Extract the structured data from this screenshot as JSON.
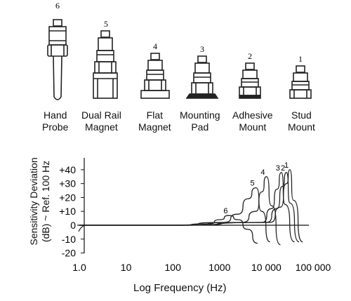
{
  "mounts": [
    {
      "number": "6",
      "line1": "Hand",
      "line2": "Probe"
    },
    {
      "number": "5",
      "line1": "Dual Rail",
      "line2": "Magnet"
    },
    {
      "number": "4",
      "line1": "Flat",
      "line2": "Magnet"
    },
    {
      "number": "3",
      "line1": "Mounting",
      "line2": "Pad"
    },
    {
      "number": "2",
      "line1": "Adhesive",
      "line2": "Mount"
    },
    {
      "number": "1",
      "line1": "Stud",
      "line2": "Mount"
    }
  ],
  "chart_data": {
    "type": "line",
    "x_scale": "log",
    "ylabel_line1": "Sensitivity Deviation",
    "ylabel_line2": "(dB) ~ Ref. 100 Hz",
    "xlabel": "Log Frequency (Hz)",
    "y_ticks": [
      "+40",
      "+30",
      "+20",
      "+10",
      "0",
      "-10",
      "-20"
    ],
    "x_ticks": [
      "1.0",
      "10",
      "100",
      "1000",
      "10 000",
      "100 000"
    ],
    "ylim": [
      -20,
      40
    ],
    "xlim": [
      1,
      100000
    ],
    "series": [
      {
        "name": "6",
        "x": [
          1.0,
          100,
          600,
          1000,
          1600,
          2500,
          4000,
          6500
        ],
        "y": [
          0,
          0,
          1,
          4,
          7,
          4,
          -3,
          -13
        ]
      },
      {
        "name": "5",
        "x": [
          1.0,
          100,
          1200,
          2500,
          4000,
          6000,
          8000,
          12000
        ],
        "y": [
          0,
          0,
          2,
          8,
          19,
          27,
          10,
          -12
        ]
      },
      {
        "name": "4",
        "x": [
          1.0,
          100,
          3000,
          6000,
          8000,
          10000,
          13000,
          20000
        ],
        "y": [
          0,
          0,
          2,
          10,
          24,
          35,
          14,
          -14
        ]
      },
      {
        "name": "3",
        "x": [
          1.0,
          100,
          8000,
          13000,
          17000,
          21000,
          25000,
          40000
        ],
        "y": [
          0,
          0,
          2,
          12,
          26,
          38,
          15,
          -12
        ]
      },
      {
        "name": "2",
        "x": [
          1.0,
          100,
          10000,
          17000,
          22000,
          27000,
          32000,
          50000
        ],
        "y": [
          0,
          0,
          2,
          12,
          28,
          38,
          16,
          -12
        ]
      },
      {
        "name": "1",
        "x": [
          1.0,
          100,
          12000,
          20000,
          27000,
          32000,
          38000,
          60000
        ],
        "y": [
          0,
          0,
          2,
          13,
          30,
          40,
          18,
          -12
        ]
      }
    ]
  }
}
